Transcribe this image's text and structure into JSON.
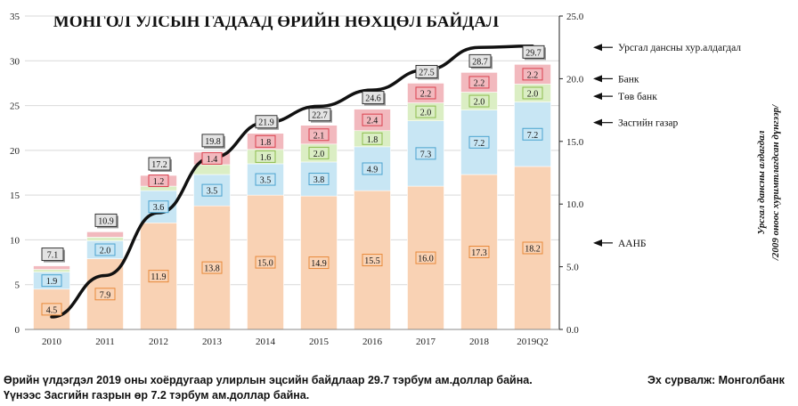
{
  "chart_data": {
    "type": "stacked-bar+line",
    "title": "МОНГОЛ УЛСЫН ГАДААД ӨРИЙН НӨХЦӨЛ БАЙДАЛ",
    "categories": [
      "2010",
      "2011",
      "2012",
      "2013",
      "2014",
      "2015",
      "2016",
      "2017",
      "2018",
      "2019Q2"
    ],
    "series": [
      {
        "name": "ААНБ",
        "color": "#f9d2b4",
        "label_border": "#e8893a",
        "values": [
          4.5,
          7.9,
          11.9,
          13.8,
          15.0,
          14.9,
          15.5,
          16.0,
          17.3,
          18.2
        ]
      },
      {
        "name": "Засгийн газар",
        "color": "#c8e6f4",
        "label_border": "#4aa3cf",
        "values": [
          1.9,
          2.0,
          3.6,
          3.5,
          3.5,
          3.8,
          4.9,
          7.3,
          7.2,
          7.2
        ]
      },
      {
        "name": "Төв банк",
        "color": "#dbeec4",
        "label_border": "#8cbc4c",
        "values": [
          0.3,
          0.4,
          0.5,
          1.1,
          1.6,
          2.0,
          1.8,
          2.0,
          2.0,
          2.0
        ]
      },
      {
        "name": "Банк",
        "color": "#f2b9be",
        "label_border": "#d9404d",
        "values": [
          0.4,
          0.6,
          1.2,
          1.4,
          1.8,
          2.1,
          2.4,
          2.2,
          2.2,
          2.2
        ]
      }
    ],
    "segment_labels": {
      "ААНБ": [
        "4.5",
        "7.9",
        "11.9",
        "13.8",
        "15.0",
        "14.9",
        "15.5",
        "16.0",
        "17.3",
        "18.2"
      ],
      "Засгийн газар": [
        "1.9",
        "2.0",
        "3.6",
        "3.5",
        "3.5",
        "3.8",
        "4.9",
        "7.3",
        "7.2",
        "7.2"
      ],
      "Төв банк": [
        "",
        "",
        "",
        "",
        "1.6",
        "2.0",
        "1.8",
        "2.0",
        "2.0",
        "2.0"
      ],
      "Банк": [
        "",
        "",
        "1.2",
        "1.4",
        "1.8",
        "2.1",
        "2.4",
        "2.2",
        "2.2",
        "2.2"
      ]
    },
    "totals": [
      7.1,
      10.9,
      17.2,
      19.8,
      21.9,
      22.7,
      24.6,
      27.5,
      28.7,
      29.7
    ],
    "total_labels": [
      "7.1",
      "10.9",
      "17.2",
      "19.8",
      "21.9",
      "22.7",
      "24.6",
      "27.5",
      "28.7",
      "29.7"
    ],
    "line": {
      "name": "Урсгал дансны хур.алдагдал",
      "axis": "right",
      "values": [
        1.0,
        4.3,
        9.3,
        13.7,
        16.5,
        17.8,
        19.1,
        20.7,
        22.5,
        22.6
      ]
    },
    "left_axis": {
      "ylim": [
        0,
        35
      ],
      "ticks": [
        "0",
        "5",
        "10",
        "15",
        "20",
        "25",
        "30",
        "35"
      ]
    },
    "right_axis": {
      "ylim": [
        0,
        25
      ],
      "ticks": [
        "0.0",
        "5.0",
        "10.0",
        "15.0",
        "20.0",
        "25.0"
      ],
      "label_line1": "Урсгал дансны алдагдал",
      "label_line2": "/2009 оноос хуримтлагдсан дүнгээр/"
    },
    "legend": [
      {
        "text": "Урсгал дансны хур.алдагдал",
        "right_value": 22.5
      },
      {
        "text": "Банк",
        "right_value": 20.0
      },
      {
        "text": "Төв банк",
        "right_value": 18.6
      },
      {
        "text": "Засгийн газар",
        "right_value": 16.5
      },
      {
        "text": "ААНБ",
        "right_value": 6.9
      }
    ]
  },
  "footer": {
    "line1": "Өрийн үлдэгдэл 2019 оны хоёрдугаар улирлын эцсийн байдлаар 29.7 тэрбум ам.доллар байна.",
    "line2": "Үүнээс  Засгийн газрын өр 7.2 тэрбум ам.доллар байна.",
    "source": "Эх сурвалж: Монголбанк"
  }
}
